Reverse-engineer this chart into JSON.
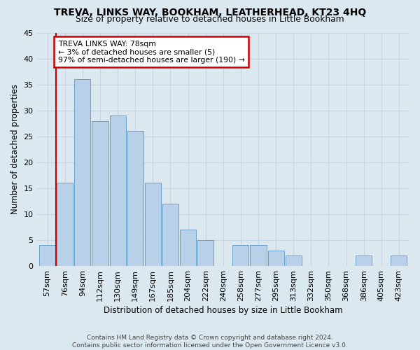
{
  "title": "TREVA, LINKS WAY, BOOKHAM, LEATHERHEAD, KT23 4HQ",
  "subtitle": "Size of property relative to detached houses in Little Bookham",
  "xlabel": "Distribution of detached houses by size in Little Bookham",
  "ylabel": "Number of detached properties",
  "categories": [
    "57sqm",
    "76sqm",
    "94sqm",
    "112sqm",
    "130sqm",
    "149sqm",
    "167sqm",
    "185sqm",
    "204sqm",
    "222sqm",
    "240sqm",
    "258sqm",
    "277sqm",
    "295sqm",
    "313sqm",
    "332sqm",
    "350sqm",
    "368sqm",
    "386sqm",
    "405sqm",
    "423sqm"
  ],
  "values": [
    4,
    16,
    36,
    28,
    29,
    26,
    16,
    12,
    7,
    5,
    0,
    4,
    4,
    3,
    2,
    0,
    0,
    0,
    2,
    0,
    2
  ],
  "bar_color": "#b8d0e8",
  "bar_edge_color": "#6aa0cc",
  "annotation_text_line1": "TREVA LINKS WAY: 78sqm",
  "annotation_text_line2": "← 3% of detached houses are smaller (5)",
  "annotation_text_line3": "97% of semi-detached houses are larger (190) →",
  "annotation_box_facecolor": "#ffffff",
  "annotation_box_edgecolor": "#cc0000",
  "vline_color": "#cc0000",
  "grid_color": "#c8d4e4",
  "bg_color": "#dce8f0",
  "plot_bg_color": "#dce8f0",
  "ylim": [
    0,
    45
  ],
  "yticks": [
    0,
    5,
    10,
    15,
    20,
    25,
    30,
    35,
    40,
    45
  ],
  "footer_line1": "Contains HM Land Registry data © Crown copyright and database right 2024.",
  "footer_line2": "Contains public sector information licensed under the Open Government Licence v3.0."
}
